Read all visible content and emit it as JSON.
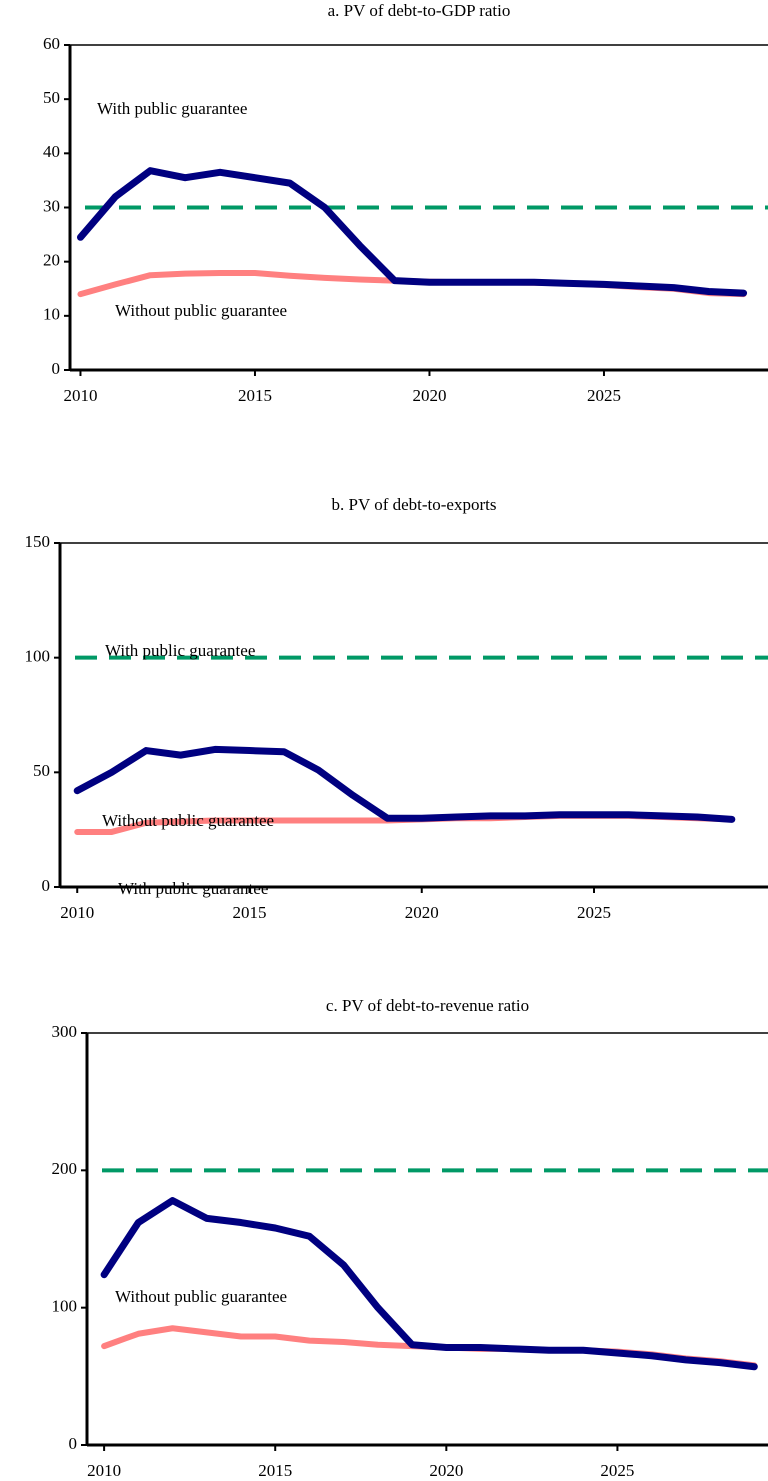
{
  "chart_data": [
    {
      "type": "line",
      "title": "a. PV of debt-to-GDP ratio",
      "x": [
        2010,
        2011,
        2012,
        2013,
        2014,
        2015,
        2016,
        2017,
        2018,
        2019,
        2020,
        2021,
        2022,
        2023,
        2024,
        2025,
        2026,
        2027,
        2028,
        2029
      ],
      "series": [
        {
          "name": "With public guarantee",
          "color": "#000080",
          "values": [
            24.5,
            32,
            36.8,
            35.5,
            36.5,
            35.5,
            34.5,
            30,
            23,
            16.5,
            16.2,
            16.2,
            16.2,
            16.2,
            16,
            15.8,
            15.5,
            15.2,
            14.5,
            14.2
          ]
        },
        {
          "name": "Without public guarantee",
          "color": "#ff8080",
          "values": [
            14,
            15.8,
            17.5,
            17.8,
            17.9,
            17.9,
            17.4,
            17,
            16.7,
            16.5,
            16.3,
            16.2,
            16.2,
            16.1,
            16,
            15.7,
            15.3,
            15,
            14.2,
            14
          ]
        }
      ],
      "threshold": 30,
      "threshold_color": "#009966",
      "xlim": [
        2009.7,
        2029.7
      ],
      "xticks": [
        2010,
        2015,
        2020,
        2025
      ],
      "ylim": [
        0,
        60
      ],
      "yticks": [
        0,
        10,
        20,
        30,
        40,
        50,
        60
      ]
    },
    {
      "type": "line",
      "title": "b. PV of debt-to-exports",
      "x": [
        2010,
        2011,
        2012,
        2013,
        2014,
        2015,
        2016,
        2017,
        2018,
        2019,
        2020,
        2021,
        2022,
        2023,
        2024,
        2025,
        2026,
        2027,
        2028,
        2029
      ],
      "series": [
        {
          "name": "With public guarantee",
          "color": "#000080",
          "values": [
            42,
            50,
            59.5,
            57.5,
            60,
            59.5,
            59,
            51,
            40,
            30,
            30,
            30.5,
            31,
            31,
            31.5,
            31.5,
            31.5,
            31,
            30.5,
            29.5
          ]
        },
        {
          "name": "Without public guarantee",
          "color": "#ff8080",
          "values": [
            24,
            24,
            28,
            28.5,
            29,
            29,
            29,
            29,
            29,
            29,
            29.5,
            30,
            30,
            30.5,
            31,
            31,
            31,
            30.5,
            30,
            29.5
          ]
        }
      ],
      "threshold": 100,
      "threshold_color": "#009966",
      "xlim": [
        2009.5,
        2030.05
      ],
      "xticks": [
        2010,
        2015,
        2020,
        2025
      ],
      "ylim": [
        0,
        150
      ],
      "yticks": [
        0,
        50,
        100,
        150
      ]
    },
    {
      "type": "line",
      "title": "c. PV of debt-to-revenue ratio",
      "x": [
        2010,
        2011,
        2012,
        2013,
        2014,
        2015,
        2016,
        2017,
        2018,
        2019,
        2020,
        2021,
        2022,
        2023,
        2024,
        2025,
        2026,
        2027,
        2028,
        2029
      ],
      "series": [
        {
          "name": "With public guarantee",
          "color": "#000080",
          "values": [
            124,
            162,
            178,
            165,
            162,
            158,
            152,
            131,
            100,
            73,
            71,
            71,
            70,
            69,
            69,
            67,
            65,
            62,
            60,
            57
          ]
        },
        {
          "name": "Without public guarantee",
          "color": "#ff8080",
          "values": [
            72,
            81,
            85,
            82,
            79,
            79,
            76,
            75,
            73,
            72,
            71,
            70,
            70,
            69,
            69,
            68,
            66,
            63,
            61,
            58
          ]
        }
      ],
      "threshold": 200,
      "threshold_color": "#009966",
      "xlim": [
        2009.5,
        2029.4
      ],
      "xticks": [
        2010,
        2015,
        2020,
        2025
      ],
      "ylim": [
        0,
        300
      ],
      "yticks": [
        0,
        100,
        200,
        300
      ]
    }
  ]
}
